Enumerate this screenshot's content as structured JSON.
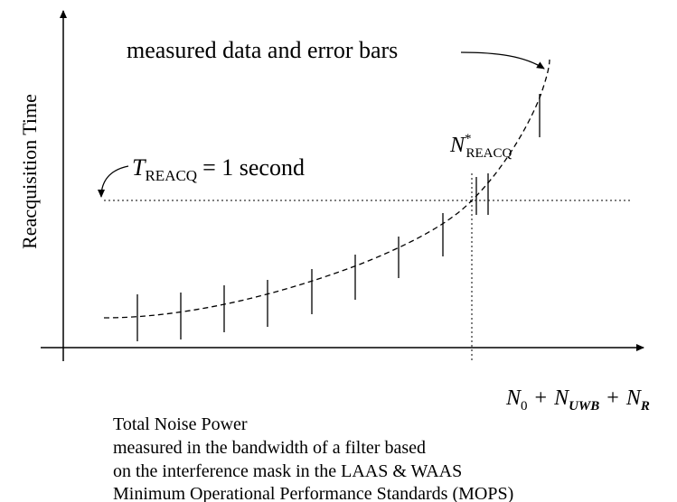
{
  "annotation": "measured data and error bars",
  "y_axis_label": "Reacquisition Time",
  "threshold": {
    "symbol": "T",
    "subscript": "REACQ",
    "rest": "= 1 second"
  },
  "crossing": {
    "symbol": "N",
    "superscript": "*",
    "subscript": "REACQ"
  },
  "x_axis_label": {
    "n0": "N",
    "n0_sub": "0",
    "plus1": "+",
    "nuwb": "N",
    "nuwb_sub": "UWB",
    "plus2": "+",
    "nr": "N",
    "nr_sub": "R"
  },
  "description": [
    "Total Noise Power",
    "measured in the bandwidth of a filter based",
    "on the interference mask in the LAAS & WAAS",
    "Minimum Operational Performance Standards (MOPS)"
  ]
}
